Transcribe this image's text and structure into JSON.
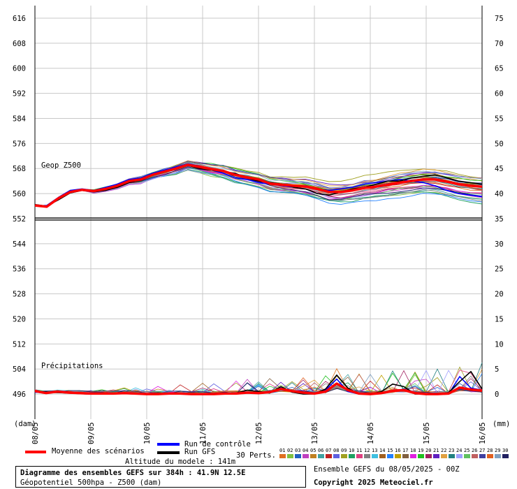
{
  "chart_data": {
    "type": "line",
    "title": "Diagramme des ensembles GEFS sur 384h : 41.9N 12.5E",
    "subtitle": "Géopotentiel 500hpa - Z500 (dam)",
    "xlabel": "(dam)",
    "x_unit_right": "(mm)",
    "x_ticks": [
      "08/05",
      "09/05",
      "10/05",
      "11/05",
      "12/05",
      "13/05",
      "14/05",
      "15/05",
      "16/05"
    ],
    "x_range_hours": [
      0,
      384
    ],
    "y_left": {
      "label": "Z500 (dam)",
      "range": [
        488,
        620
      ],
      "ticks": [
        496,
        504,
        512,
        520,
        528,
        536,
        544,
        552,
        560,
        568,
        576,
        584,
        592,
        600,
        608,
        616
      ]
    },
    "y_right": {
      "label": "mm",
      "range": [
        0,
        75
      ],
      "ticks": [
        0,
        5,
        10,
        15,
        20,
        25,
        30,
        35,
        40,
        45,
        50,
        55,
        60,
        65,
        70,
        75
      ]
    },
    "reference_line_dam": 552,
    "grid": true,
    "panel_labels": {
      "geop": "Geop Z500",
      "precip": "Précipitations"
    },
    "series": [
      {
        "name": "Moyenne des scénarios",
        "color": "#ff0000",
        "geop_dam": [
          556.2,
          555.8,
          558.5,
          560.5,
          561.2,
          560.8,
          561.5,
          562.5,
          564.0,
          564.5,
          566.0,
          567.0,
          568.0,
          569.2,
          568.5,
          567.8,
          567.2,
          566.0,
          565.2,
          564.5,
          563.2,
          562.8,
          562.5,
          562.2,
          561.5,
          560.5,
          560.5,
          561.0,
          561.8,
          562.2,
          562.8,
          563.5,
          564.0,
          564.5,
          564.5,
          563.8,
          563.0,
          562.5,
          562.2
        ],
        "precip_mm": [
          0.6,
          0.2,
          0.5,
          0.3,
          0.2,
          0.1,
          0.1,
          0.1,
          0.2,
          0.1,
          0.0,
          0.0,
          0.1,
          0.1,
          0.0,
          0.0,
          0.0,
          0.1,
          0.1,
          0.3,
          0.2,
          0.4,
          1.0,
          0.6,
          0.3,
          0.1,
          0.5,
          2.1,
          0.8,
          0.1,
          0.0,
          0.2,
          0.6,
          0.8,
          0.2,
          0.0,
          0.0,
          0.1,
          1.3,
          0.9,
          0.7
        ]
      },
      {
        "name": "Run de contrôle",
        "color": "#0000ff",
        "geop_dam": [
          556.0,
          556.2,
          558.8,
          561.0,
          561.5,
          561.0,
          562.0,
          563.0,
          564.5,
          565.0,
          566.5,
          567.5,
          568.5,
          569.5,
          568.8,
          567.5,
          566.5,
          565.0,
          564.5,
          563.5,
          563.0,
          562.5,
          562.0,
          562.5,
          561.5,
          561.0,
          561.5,
          562.0,
          563.0,
          563.5,
          564.0,
          564.5,
          564.0,
          563.5,
          562.5,
          561.0,
          560.0,
          559.5,
          559.0
        ],
        "precip_mm": [
          0.4,
          0.3,
          0.4,
          0.2,
          0.1,
          0.0,
          0.0,
          0.1,
          0.2,
          0.0,
          0.0,
          0.0,
          0.0,
          0.2,
          0.0,
          0.0,
          0.0,
          0.2,
          0.0,
          0.4,
          0.1,
          0.3,
          1.2,
          0.5,
          0.2,
          0.0,
          0.8,
          3.0,
          0.5,
          0.0,
          0.0,
          0.1,
          0.5,
          1.0,
          0.1,
          0.0,
          0.0,
          0.0,
          3.5,
          1.2,
          0.8
        ]
      },
      {
        "name": "Run GFS",
        "color": "#000000",
        "geop_dam": [
          556.5,
          556.0,
          558.0,
          560.2,
          561.0,
          560.5,
          561.0,
          562.0,
          563.5,
          564.2,
          565.8,
          566.8,
          567.8,
          569.0,
          568.0,
          567.5,
          567.0,
          566.5,
          565.0,
          564.0,
          563.5,
          563.0,
          562.0,
          561.5,
          560.0,
          559.5,
          560.5,
          561.5,
          562.0,
          563.0,
          564.0,
          564.0,
          565.0,
          565.5,
          566.0,
          565.0,
          564.0,
          563.5,
          563.0
        ],
        "precip_mm": [
          0.5,
          0.4,
          0.3,
          0.2,
          0.1,
          0.0,
          0.0,
          0.2,
          0.1,
          0.0,
          0.0,
          0.0,
          0.1,
          0.0,
          0.0,
          0.0,
          0.0,
          0.0,
          0.2,
          0.8,
          0.5,
          0.2,
          1.5,
          0.4,
          0.0,
          0.0,
          1.0,
          3.8,
          1.2,
          0.0,
          0.0,
          0.5,
          2.0,
          1.5,
          0.0,
          0.0,
          0.0,
          0.3,
          2.5,
          4.5,
          1.0
        ]
      }
    ],
    "perturbations": {
      "count_label": "30 Perts.",
      "geop_spread_dam": {
        "min_at_end": 556,
        "max_at_end": 570
      },
      "precip_max_mm": 9
    }
  },
  "legend": {
    "mean_label": "Moyenne des scénarios",
    "control_label": "Run de contrôle",
    "gfs_label": "Run GFS",
    "perts_label": "30 Perts.",
    "pert_numbers": [
      "01",
      "02",
      "03",
      "04",
      "05",
      "06",
      "07",
      "08",
      "09",
      "10",
      "11",
      "12",
      "13",
      "14",
      "15",
      "16",
      "17",
      "18",
      "19",
      "20",
      "21",
      "22",
      "23",
      "24",
      "25",
      "26",
      "27",
      "28",
      "29",
      "30"
    ],
    "pert_colors": [
      "#e07020",
      "#80c040",
      "#2060c0",
      "#c040c0",
      "#c08020",
      "#40a0a0",
      "#c02020",
      "#6060e0",
      "#a0a020",
      "#20a060",
      "#e04080",
      "#808080",
      "#40c0e0",
      "#a06020",
      "#2080ff",
      "#c0a000",
      "#806040",
      "#e020e0",
      "#20c020",
      "#a02060",
      "#6020c0",
      "#e0a040",
      "#208080",
      "#a0a0ff",
      "#60c060",
      "#c06060",
      "#4040a0",
      "#e06020",
      "#80a0c0",
      "#202060"
    ]
  },
  "footer": {
    "altitude": "Altitude du modele : 141m",
    "ensemble": "Ensemble GEFS du 08/05/2025 - 00Z",
    "copyright": "Copyright 2025 Meteociel.fr"
  }
}
